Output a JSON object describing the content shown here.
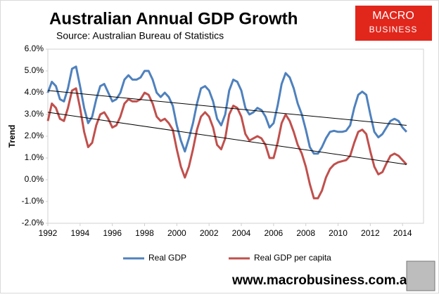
{
  "chart_data": {
    "type": "line",
    "title": "Australian Annual GDP Growth",
    "subtitle": "Source: Australian Bureau of Statistics",
    "y_label": "Trend",
    "x": [
      1992,
      1992.25,
      1992.5,
      1992.75,
      1993,
      1993.25,
      1993.5,
      1993.75,
      1994,
      1994.25,
      1994.5,
      1994.75,
      1995,
      1995.25,
      1995.5,
      1995.75,
      1996,
      1996.25,
      1996.5,
      1996.75,
      1997,
      1997.25,
      1997.5,
      1997.75,
      1998,
      1998.25,
      1998.5,
      1998.75,
      1999,
      1999.25,
      1999.5,
      1999.75,
      2000,
      2000.25,
      2000.5,
      2000.75,
      2001,
      2001.25,
      2001.5,
      2001.75,
      2002,
      2002.25,
      2002.5,
      2002.75,
      2003,
      2003.25,
      2003.5,
      2003.75,
      2004,
      2004.25,
      2004.5,
      2004.75,
      2005,
      2005.25,
      2005.5,
      2005.75,
      2006,
      2006.25,
      2006.5,
      2006.75,
      2007,
      2007.25,
      2007.5,
      2007.75,
      2008,
      2008.25,
      2008.5,
      2008.75,
      2009,
      2009.25,
      2009.5,
      2009.75,
      2010,
      2010.25,
      2010.5,
      2010.75,
      2011,
      2011.25,
      2011.5,
      2011.75,
      2012,
      2012.25,
      2012.5,
      2012.75,
      2013,
      2013.25,
      2013.5,
      2013.75,
      2014,
      2014.25
    ],
    "series": [
      {
        "name": "Real GDP",
        "color": "#4f81bd",
        "values": [
          4.0,
          4.5,
          4.3,
          3.7,
          3.6,
          4.2,
          5.1,
          5.2,
          4.3,
          3.3,
          2.6,
          2.9,
          3.7,
          4.3,
          4.4,
          4.0,
          3.6,
          3.7,
          4.0,
          4.6,
          4.8,
          4.6,
          4.6,
          4.7,
          5.0,
          5.0,
          4.6,
          4.0,
          3.8,
          4.0,
          3.8,
          3.4,
          2.5,
          1.8,
          1.3,
          1.9,
          2.6,
          3.5,
          4.2,
          4.3,
          4.1,
          3.6,
          2.8,
          2.5,
          3.0,
          4.1,
          4.6,
          4.5,
          4.1,
          3.3,
          3.0,
          3.1,
          3.3,
          3.2,
          2.9,
          2.4,
          2.6,
          3.4,
          4.4,
          4.9,
          4.7,
          4.2,
          3.5,
          3.0,
          2.3,
          1.5,
          1.2,
          1.2,
          1.5,
          1.9,
          2.2,
          2.25,
          2.2,
          2.2,
          2.25,
          2.5,
          3.3,
          3.9,
          4.05,
          3.9,
          3.0,
          2.2,
          1.95,
          2.1,
          2.4,
          2.7,
          2.8,
          2.7,
          2.4,
          2.2
        ],
        "trend": {
          "x": [
            1992,
            2014.25
          ],
          "values": [
            4.1,
            2.5
          ],
          "color": "#000000"
        }
      },
      {
        "name": "Real GDP per capita",
        "color": "#c0504d",
        "values": [
          2.7,
          3.5,
          3.3,
          2.8,
          2.7,
          3.3,
          4.1,
          4.2,
          3.3,
          2.2,
          1.5,
          1.7,
          2.5,
          3.0,
          3.1,
          2.8,
          2.4,
          2.5,
          2.9,
          3.5,
          3.7,
          3.6,
          3.6,
          3.7,
          4.0,
          3.9,
          3.5,
          2.9,
          2.7,
          2.8,
          2.6,
          2.3,
          1.4,
          0.6,
          0.1,
          0.6,
          1.4,
          2.3,
          2.9,
          3.1,
          2.9,
          2.4,
          1.6,
          1.4,
          1.9,
          3.0,
          3.4,
          3.3,
          2.9,
          2.1,
          1.8,
          1.9,
          2.0,
          1.9,
          1.6,
          1.0,
          1.0,
          1.7,
          2.6,
          3.0,
          2.7,
          2.2,
          1.6,
          1.2,
          0.6,
          -0.2,
          -0.85,
          -0.85,
          -0.5,
          0.1,
          0.5,
          0.7,
          0.8,
          0.85,
          0.9,
          1.1,
          1.7,
          2.2,
          2.3,
          2.1,
          1.3,
          0.6,
          0.25,
          0.35,
          0.75,
          1.1,
          1.2,
          1.1,
          0.9,
          0.7
        ],
        "trend": {
          "x": [
            1992,
            2014.25
          ],
          "values": [
            3.1,
            0.7
          ],
          "color": "#000000"
        }
      }
    ],
    "xlim": [
      1992,
      2015.3
    ],
    "xticks": [
      1992,
      1994,
      1996,
      1998,
      2000,
      2002,
      2004,
      2006,
      2008,
      2010,
      2012,
      2014
    ],
    "ylim": [
      -2,
      6
    ],
    "yticks": [
      {
        "value": -2,
        "label": "-2.0%"
      },
      {
        "value": -1,
        "label": "-1.0%"
      },
      {
        "value": 0,
        "label": "0.0%"
      },
      {
        "value": 1,
        "label": "1.0%"
      },
      {
        "value": 2,
        "label": "2.0%"
      },
      {
        "value": 3,
        "label": "3.0%"
      },
      {
        "value": 4,
        "label": "4.0%"
      },
      {
        "value": 5,
        "label": "5.0%"
      },
      {
        "value": 6,
        "label": "6.0%"
      }
    ],
    "grid": false,
    "legend": "bottom"
  },
  "branding": {
    "logo": [
      "MACRO",
      "BUSINESS"
    ],
    "url": "www.macrobusiness.com.au"
  }
}
